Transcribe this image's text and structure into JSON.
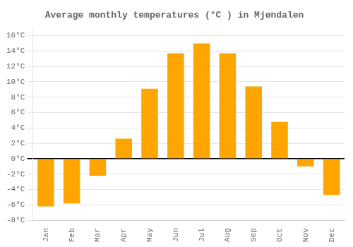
{
  "chart_data": {
    "type": "bar",
    "title": "Average monthly temperatures (°C ) in Mjøndalen",
    "categories": [
      "Jan",
      "Feb",
      "Mar",
      "Apr",
      "May",
      "Jun",
      "Jul",
      "Aug",
      "Sep",
      "Oct",
      "Nov",
      "Dec"
    ],
    "values": [
      -6.2,
      -5.8,
      -2.2,
      2.6,
      9.1,
      13.7,
      15.0,
      13.7,
      9.4,
      4.8,
      -1.0,
      -4.7
    ],
    "color": "#FFA500",
    "ylim": [
      -8,
      17
    ],
    "yticks": [
      {
        "value": -8,
        "label": "-8°C"
      },
      {
        "value": -6,
        "label": "-6°C"
      },
      {
        "value": -4,
        "label": "-4°C"
      },
      {
        "value": -2,
        "label": "-2°C"
      },
      {
        "value": 0,
        "label": "0°C"
      },
      {
        "value": 2,
        "label": "2°C"
      },
      {
        "value": 4,
        "label": "4°C"
      },
      {
        "value": 6,
        "label": "6°C"
      },
      {
        "value": 8,
        "label": "8°C"
      },
      {
        "value": 10,
        "label": "10°C"
      },
      {
        "value": 12,
        "label": "12°C"
      },
      {
        "value": 14,
        "label": "14°C"
      },
      {
        "value": 16,
        "label": "16°C"
      }
    ],
    "grid": true
  }
}
